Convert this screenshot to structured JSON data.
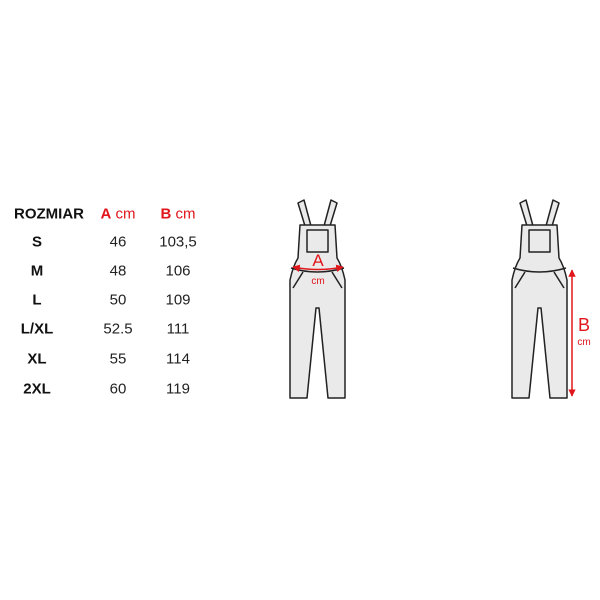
{
  "table": {
    "headers": {
      "size": "ROZMIAR",
      "a_letter": "A",
      "a_unit": "cm",
      "b_letter": "B",
      "b_unit": "cm"
    },
    "rows": [
      {
        "size": "S",
        "a": "46",
        "b": "103,5"
      },
      {
        "size": "M",
        "a": "48",
        "b": "106"
      },
      {
        "size": "L",
        "a": "50",
        "b": "109"
      },
      {
        "size": "L/XL",
        "a": "52.5",
        "b": "111"
      },
      {
        "size": "XL",
        "a": "55",
        "b": "114"
      },
      {
        "size": "2XL",
        "a": "60",
        "b": "119"
      }
    ]
  },
  "diagram": {
    "front_label": "A",
    "front_unit": "cm",
    "side_label": "B",
    "side_unit": "cm",
    "accent_color": "#e0161b",
    "garment_fill": "#eaeaea"
  }
}
